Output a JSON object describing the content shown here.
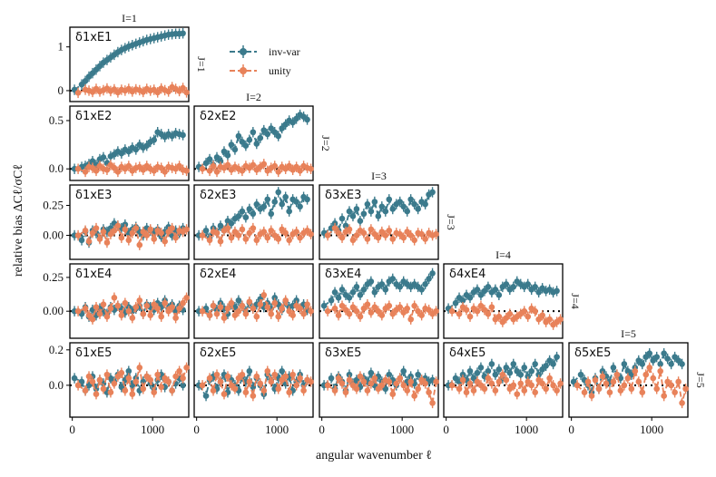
{
  "chart_data": {
    "type": "line",
    "title": "",
    "xlabel": "angular wavenumber ℓ",
    "ylabel": "relative bias ΔCℓ/σCℓ",
    "xlim": [
      -30,
      1450
    ],
    "xticks": [
      0,
      1000
    ],
    "x": [
      50,
      140,
      185,
      230,
      275,
      320,
      365,
      410,
      455,
      500,
      545,
      590,
      635,
      680,
      725,
      770,
      815,
      860,
      905,
      950,
      995,
      1040,
      1085,
      1130,
      1175,
      1220,
      1265,
      1310,
      1355,
      1400
    ],
    "colors": {
      "invvar": "#3b7a8c",
      "unity": "#e8825a"
    },
    "legend": {
      "position": "top",
      "entries": [
        "inv-var",
        "unity"
      ]
    },
    "col_titles": [
      "I=1",
      "I=2",
      "I=3",
      "I=4",
      "I=5"
    ],
    "row_titles": [
      "J=1",
      "J=2",
      "J=3",
      "J=4",
      "J=5"
    ],
    "panels": [
      {
        "id": "11",
        "label": "δ1xE1",
        "row": 0,
        "col": 0,
        "ylim": [
          -0.25,
          1.45
        ],
        "yticks": [
          0,
          1
        ],
        "invvar": [
          0.02,
          0.14,
          0.22,
          0.32,
          0.4,
          0.48,
          0.56,
          0.64,
          0.7,
          0.76,
          0.82,
          0.88,
          0.93,
          0.97,
          1.01,
          1.04,
          1.07,
          1.1,
          1.13,
          1.16,
          1.18,
          1.2,
          1.22,
          1.24,
          1.26,
          1.28,
          1.29,
          1.3,
          1.3,
          1.31
        ],
        "unity": [
          -0.05,
          0.02,
          0.0,
          -0.03,
          0.04,
          -0.02,
          0.01,
          0.05,
          -0.01,
          0.03,
          -0.04,
          0.02,
          0.0,
          0.04,
          -0.02,
          0.03,
          0.01,
          -0.03,
          0.04,
          0.0,
          0.02,
          -0.04,
          0.05,
          0.01,
          -0.02,
          0.08,
          0.04,
          -0.01,
          0.06,
          -0.04
        ]
      },
      {
        "id": "12",
        "label": "δ1xE2",
        "row": 1,
        "col": 0,
        "ylim": [
          -0.12,
          0.65
        ],
        "yticks": [
          0.0,
          0.5
        ],
        "invvar": [
          0.0,
          0.02,
          0.03,
          0.05,
          0.08,
          0.04,
          0.1,
          0.12,
          0.06,
          0.13,
          0.15,
          0.18,
          0.16,
          0.2,
          0.18,
          0.22,
          0.2,
          0.25,
          0.22,
          0.24,
          0.28,
          0.3,
          0.38,
          0.36,
          0.33,
          0.36,
          0.34,
          0.37,
          0.36,
          0.35
        ],
        "unity": [
          0.0,
          -0.03,
          0.02,
          0.01,
          -0.02,
          0.03,
          0.0,
          -0.01,
          0.04,
          0.01,
          -0.03,
          0.02,
          0.0,
          0.03,
          -0.02,
          0.01,
          0.02,
          -0.01,
          0.03,
          0.0,
          -0.02,
          0.02,
          0.01,
          -0.03,
          0.02,
          0.01,
          0.0,
          0.03,
          -0.01,
          -0.02
        ]
      },
      {
        "id": "13",
        "label": "δ1xE3",
        "row": 2,
        "col": 0,
        "ylim": [
          -0.2,
          0.42
        ],
        "yticks": [
          0.0,
          0.25
        ],
        "invvar": [
          0.0,
          -0.04,
          0.03,
          -0.06,
          0.04,
          0.02,
          -0.02,
          0.05,
          0.03,
          0.06,
          0.1,
          0.08,
          0.06,
          0.09,
          0.02,
          0.05,
          0.07,
          0.03,
          0.0,
          0.06,
          0.04,
          0.02,
          0.05,
          -0.01,
          0.03,
          0.07,
          0.0,
          0.04,
          0.02,
          0.06
        ],
        "unity": [
          0.0,
          0.04,
          -0.05,
          0.02,
          0.06,
          -0.03,
          0.03,
          -0.06,
          0.01,
          0.04,
          0.08,
          -0.02,
          0.05,
          -0.04,
          0.02,
          0.06,
          -0.08,
          0.03,
          0.0,
          0.05,
          -0.03,
          0.04,
          0.02,
          -0.05,
          0.03,
          0.06,
          -0.02,
          0.04,
          0.03,
          0.05
        ]
      },
      {
        "id": "14",
        "label": "δ1xE4",
        "row": 3,
        "col": 0,
        "ylim": [
          -0.2,
          0.35
        ],
        "yticks": [
          0.0,
          0.25
        ],
        "invvar": [
          0.0,
          -0.02,
          0.03,
          -0.04,
          0.01,
          -0.03,
          0.02,
          0.0,
          -0.02,
          0.03,
          0.01,
          0.04,
          0.02,
          -0.01,
          0.03,
          0.0,
          0.02,
          0.04,
          -0.02,
          0.05,
          0.03,
          0.01,
          0.06,
          0.03,
          0.08,
          0.02,
          0.05,
          0.0,
          0.04,
          0.01
        ],
        "unity": [
          0.0,
          0.02,
          -0.03,
          -0.06,
          0.03,
          -0.02,
          0.05,
          -0.04,
          0.02,
          0.1,
          0.04,
          -0.03,
          0.06,
          0.0,
          -0.05,
          0.03,
          0.08,
          -0.02,
          0.04,
          -0.03,
          0.05,
          0.02,
          -0.04,
          0.06,
          0.0,
          0.03,
          -0.05,
          0.02,
          0.06,
          0.1
        ]
      },
      {
        "id": "15",
        "label": "δ1xE5",
        "row": 4,
        "col": 0,
        "ylim": [
          -0.18,
          0.24
        ],
        "yticks": [
          0.0,
          0.2
        ],
        "invvar": [
          0.04,
          0.02,
          -0.03,
          0.0,
          0.05,
          -0.02,
          0.03,
          0.01,
          -0.04,
          0.04,
          0.02,
          0.06,
          -0.01,
          0.03,
          0.08,
          0.0,
          0.04,
          -0.03,
          0.02,
          0.05,
          0.01,
          -0.02,
          0.03,
          0.06,
          -0.01,
          0.02,
          -0.03,
          0.01,
          0.04,
          0.0
        ],
        "unity": [
          0.0,
          -0.03,
          0.05,
          0.02,
          -0.05,
          0.03,
          -0.02,
          0.06,
          -0.04,
          0.01,
          0.05,
          0.07,
          -0.03,
          0.04,
          -0.05,
          0.02,
          0.1,
          -0.02,
          0.05,
          0.03,
          -0.04,
          0.06,
          -0.01,
          0.04,
          0.02,
          -0.03,
          0.05,
          0.08,
          0.04,
          0.1
        ]
      },
      {
        "id": "22",
        "label": "δ2xE2",
        "row": 1,
        "col": 1,
        "ylim": [
          -0.12,
          0.65
        ],
        "yticks": [],
        "invvar": [
          0.02,
          0.06,
          0.1,
          0.04,
          0.12,
          0.08,
          0.18,
          0.14,
          0.25,
          0.2,
          0.34,
          0.28,
          0.24,
          0.3,
          0.38,
          0.26,
          0.32,
          0.4,
          0.36,
          0.42,
          0.38,
          0.34,
          0.42,
          0.46,
          0.5,
          0.48,
          0.52,
          0.56,
          0.54,
          0.51
        ],
        "unity": [
          0.0,
          -0.02,
          0.03,
          -0.03,
          0.02,
          0.01,
          0.04,
          -0.01,
          0.02,
          0.0,
          -0.02,
          0.03,
          0.01,
          0.04,
          -0.01,
          0.02,
          0.05,
          -0.02,
          0.01,
          0.03,
          -0.03,
          0.02,
          0.0,
          0.03,
          -0.01,
          0.02,
          -0.02,
          0.03,
          0.01,
          0.0
        ]
      },
      {
        "id": "23",
        "label": "δ2xE3",
        "row": 2,
        "col": 1,
        "ylim": [
          -0.2,
          0.42
        ],
        "yticks": [],
        "invvar": [
          0.0,
          0.04,
          -0.02,
          0.06,
          0.02,
          0.08,
          0.04,
          0.12,
          0.1,
          0.14,
          0.16,
          0.2,
          0.15,
          0.22,
          0.18,
          0.26,
          0.22,
          0.24,
          0.3,
          0.18,
          0.28,
          0.36,
          0.26,
          0.32,
          0.2,
          0.3,
          0.28,
          0.24,
          0.32,
          0.3
        ],
        "unity": [
          0.0,
          -0.04,
          0.03,
          0.02,
          -0.05,
          0.04,
          0.06,
          -0.02,
          0.03,
          0.0,
          0.05,
          -0.03,
          0.02,
          0.06,
          -0.04,
          0.01,
          0.03,
          -0.02,
          0.04,
          0.0,
          -0.03,
          0.05,
          0.02,
          -0.04,
          0.01,
          0.03,
          -0.02,
          0.02,
          0.04,
          0.01
        ]
      },
      {
        "id": "24",
        "label": "δ2xE4",
        "row": 3,
        "col": 1,
        "ylim": [
          -0.2,
          0.35
        ],
        "yticks": [],
        "invvar": [
          0.0,
          0.02,
          -0.03,
          0.04,
          0.01,
          0.06,
          0.02,
          -0.02,
          0.05,
          0.03,
          0.08,
          0.04,
          0.0,
          0.06,
          0.02,
          0.05,
          0.09,
          0.03,
          0.06,
          0.02,
          0.1,
          0.05,
          0.01,
          0.07,
          0.03,
          0.04,
          0.08,
          0.02,
          0.05,
          0.01
        ],
        "unity": [
          0.0,
          -0.03,
          0.04,
          -0.02,
          0.03,
          -0.05,
          0.02,
          0.06,
          -0.03,
          0.0,
          0.04,
          -0.02,
          0.07,
          0.02,
          -0.04,
          0.05,
          0.12,
          0.03,
          -0.02,
          0.06,
          -0.04,
          0.02,
          0.08,
          0.0,
          -0.03,
          0.04,
          0.02,
          -0.02,
          0.05,
          0.0
        ]
      },
      {
        "id": "25",
        "label": "δ2xE5",
        "row": 4,
        "col": 1,
        "ylim": [
          -0.18,
          0.24
        ],
        "yticks": [],
        "invvar": [
          0.0,
          -0.06,
          0.03,
          0.05,
          -0.02,
          0.02,
          0.06,
          -0.04,
          0.03,
          0.0,
          -0.03,
          0.05,
          0.02,
          0.08,
          -0.01,
          0.04,
          0.0,
          -0.05,
          0.06,
          0.03,
          -0.02,
          0.04,
          0.08,
          0.01,
          0.05,
          -0.03,
          0.02,
          0.06,
          0.0,
          0.03
        ],
        "unity": [
          0.0,
          0.04,
          -0.03,
          0.06,
          0.02,
          -0.05,
          0.05,
          0.0,
          -0.02,
          0.04,
          0.06,
          -0.04,
          0.02,
          -0.06,
          0.05,
          0.01,
          -0.03,
          0.08,
          0.02,
          0.06,
          -0.02,
          0.03,
          0.05,
          -0.04,
          0.06,
          0.0,
          0.04,
          -0.03,
          0.03,
          0.02
        ]
      },
      {
        "id": "33",
        "label": "δ3xE3",
        "row": 2,
        "col": 2,
        "ylim": [
          -0.2,
          0.42
        ],
        "yticks": [],
        "invvar": [
          0.02,
          0.06,
          0.1,
          0.04,
          0.14,
          0.08,
          0.2,
          0.16,
          0.22,
          0.12,
          0.18,
          0.26,
          0.2,
          0.28,
          0.16,
          0.24,
          0.2,
          0.3,
          0.22,
          0.26,
          0.28,
          0.24,
          0.2,
          0.3,
          0.26,
          0.22,
          0.28,
          0.26,
          0.34,
          0.36
        ],
        "unity": [
          0.0,
          0.06,
          0.02,
          -0.02,
          0.03,
          0.05,
          -0.04,
          0.0,
          0.04,
          0.02,
          -0.03,
          0.05,
          0.01,
          -0.02,
          0.03,
          0.0,
          0.04,
          -0.03,
          0.02,
          0.01,
          -0.02,
          0.03,
          0.0,
          -0.04,
          0.02,
          0.01,
          -0.03,
          0.02,
          0.0,
          0.01
        ]
      },
      {
        "id": "34",
        "label": "δ3xE4",
        "row": 3,
        "col": 2,
        "ylim": [
          -0.2,
          0.35
        ],
        "yticks": [],
        "invvar": [
          0.04,
          0.08,
          0.14,
          0.1,
          0.16,
          0.12,
          0.1,
          0.14,
          0.18,
          0.12,
          0.16,
          0.2,
          0.22,
          0.14,
          0.18,
          0.2,
          0.16,
          0.22,
          0.24,
          0.2,
          0.18,
          0.22,
          0.2,
          0.18,
          0.2,
          0.18,
          0.16,
          0.2,
          0.24,
          0.28
        ],
        "unity": [
          0.0,
          0.02,
          -0.03,
          0.04,
          0.01,
          -0.02,
          0.03,
          0.0,
          -0.04,
          0.02,
          0.05,
          -0.01,
          0.03,
          0.0,
          -0.03,
          0.02,
          0.04,
          -0.02,
          0.01,
          0.03,
          -0.01,
          0.02,
          -0.06,
          0.04,
          0.0,
          -0.03,
          0.02,
          0.01,
          -0.02,
          0.0
        ]
      },
      {
        "id": "35",
        "label": "δ3xE5",
        "row": 4,
        "col": 2,
        "ylim": [
          -0.18,
          0.24
        ],
        "yticks": [],
        "invvar": [
          0.0,
          0.04,
          -0.02,
          0.05,
          0.02,
          -0.03,
          0.06,
          0.01,
          0.03,
          -0.01,
          0.04,
          0.02,
          0.07,
          0.0,
          0.05,
          0.02,
          -0.02,
          0.06,
          0.03,
          0.0,
          0.04,
          0.08,
          0.02,
          0.05,
          0.01,
          0.06,
          0.03,
          0.04,
          0.02,
          0.03
        ],
        "unity": [
          0.0,
          -0.03,
          0.04,
          0.01,
          -0.04,
          0.03,
          0.0,
          -0.02,
          0.05,
          0.02,
          -0.03,
          0.01,
          0.04,
          -0.02,
          0.0,
          0.03,
          0.02,
          -0.05,
          0.01,
          0.04,
          0.0,
          -0.03,
          0.02,
          -0.06,
          -0.02,
          0.03,
          0.01,
          -0.04,
          -0.1,
          0.02
        ]
      },
      {
        "id": "44",
        "label": "δ4xE4",
        "row": 3,
        "col": 3,
        "ylim": [
          -0.2,
          0.35
        ],
        "yticks": [],
        "invvar": [
          0.02,
          0.06,
          0.1,
          0.08,
          0.12,
          0.1,
          0.14,
          0.16,
          0.12,
          0.15,
          0.18,
          0.14,
          0.16,
          0.12,
          0.18,
          0.2,
          0.16,
          0.18,
          0.22,
          0.2,
          0.18,
          0.2,
          0.16,
          0.18,
          0.14,
          0.17,
          0.15,
          0.16,
          0.14,
          0.15
        ],
        "unity": [
          0.0,
          -0.02,
          0.03,
          0.01,
          -0.04,
          0.02,
          0.0,
          0.04,
          0.01,
          -0.02,
          0.03,
          -0.06,
          -0.04,
          -0.08,
          -0.05,
          -0.02,
          -0.06,
          -0.04,
          -0.02,
          0.0,
          -0.04,
          0.02,
          0.0,
          -0.06,
          -0.03,
          -0.08,
          -0.06,
          -0.1,
          -0.08,
          -0.06
        ]
      },
      {
        "id": "45",
        "label": "δ4xE5",
        "row": 4,
        "col": 3,
        "ylim": [
          -0.18,
          0.24
        ],
        "yticks": [],
        "invvar": [
          0.0,
          0.04,
          0.02,
          0.06,
          0.03,
          0.08,
          0.04,
          0.07,
          0.1,
          0.05,
          0.08,
          0.12,
          0.06,
          0.09,
          0.04,
          0.1,
          0.07,
          0.12,
          0.08,
          0.06,
          0.1,
          0.05,
          0.08,
          0.12,
          0.06,
          0.09,
          0.11,
          0.14,
          0.12,
          0.16
        ],
        "unity": [
          0.0,
          -0.02,
          0.03,
          -0.04,
          0.01,
          -0.03,
          0.02,
          0.0,
          -0.02,
          0.04,
          0.01,
          -0.03,
          0.02,
          0.06,
          0.03,
          -0.02,
          0.0,
          -0.05,
          0.01,
          -0.03,
          0.02,
          0.0,
          -0.04,
          0.03,
          0.01,
          -0.02,
          0.04,
          0.0,
          -0.03,
          0.01
        ]
      },
      {
        "id": "55",
        "label": "δ5xE5",
        "row": 4,
        "col": 4,
        "ylim": [
          -0.18,
          0.24
        ],
        "yticks": [],
        "invvar": [
          0.02,
          0.06,
          0.03,
          0.0,
          -0.04,
          0.04,
          -0.02,
          0.08,
          0.05,
          0.02,
          0.1,
          0.06,
          0.04,
          0.12,
          0.08,
          0.06,
          0.1,
          0.14,
          0.12,
          0.16,
          0.18,
          0.14,
          0.16,
          0.12,
          0.18,
          0.15,
          0.12,
          0.16,
          0.14,
          0.12
        ],
        "unity": [
          0.0,
          -0.04,
          0.02,
          -0.06,
          0.03,
          -0.02,
          0.05,
          0.01,
          -0.04,
          0.02,
          0.06,
          -0.03,
          0.0,
          0.04,
          -0.02,
          0.08,
          0.02,
          -0.04,
          0.06,
          0.1,
          0.04,
          -0.02,
          0.08,
          -0.06,
          0.02,
          0.0,
          -0.04,
          0.02,
          -0.1,
          -0.02
        ]
      }
    ]
  }
}
